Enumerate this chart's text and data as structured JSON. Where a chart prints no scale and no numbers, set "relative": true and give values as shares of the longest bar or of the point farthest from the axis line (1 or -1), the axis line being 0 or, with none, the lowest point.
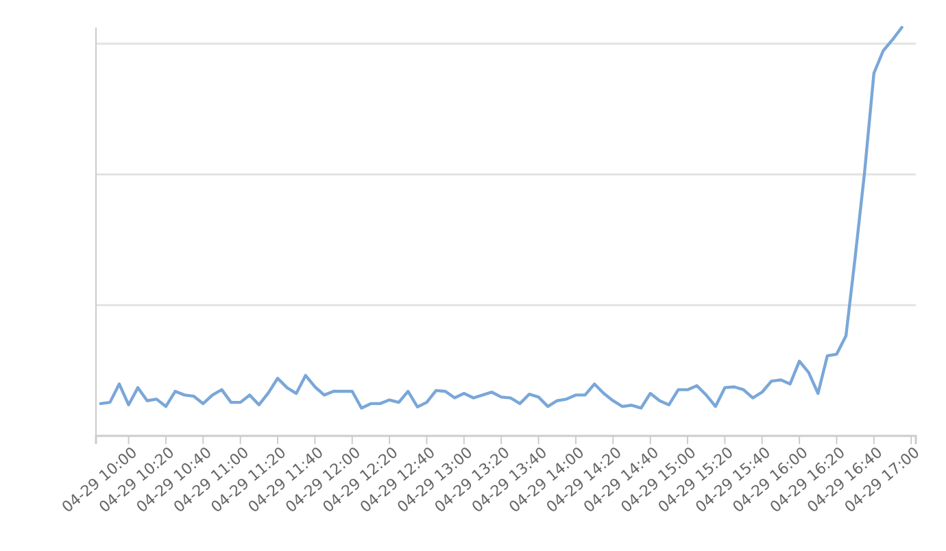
{
  "chart_data": {
    "type": "line",
    "relative": true,
    "categories": [
      null,
      null,
      null,
      "04-29 10:00",
      null,
      null,
      null,
      "04-29 10:20",
      null,
      null,
      null,
      "04-29 10:40",
      null,
      null,
      null,
      "04-29 11:00",
      null,
      null,
      null,
      "04-29 11:20",
      null,
      null,
      null,
      "04-29 11:40",
      null,
      null,
      null,
      "04-29 12:00",
      null,
      null,
      null,
      "04-29 12:20",
      null,
      null,
      null,
      "04-29 12:40",
      null,
      null,
      null,
      "04-29 13:00",
      null,
      null,
      null,
      "04-29 13:20",
      null,
      null,
      null,
      "04-29 13:40",
      null,
      null,
      null,
      "04-29 14:00",
      null,
      null,
      null,
      "04-29 14:20",
      null,
      null,
      null,
      "04-29 14:40",
      null,
      null,
      null,
      "04-29 15:00",
      null,
      null,
      null,
      "04-29 15:20",
      null,
      null,
      null,
      "04-29 15:40",
      null,
      null,
      null,
      "04-29 16:00",
      null,
      null,
      null,
      "04-29 16:20",
      null,
      null,
      null,
      "04-29 16:40",
      null,
      null,
      null,
      "04-29 17:00"
    ],
    "series": [
      {
        "color": "#7aa7d8",
        "values": [
          0.079,
          0.082,
          0.127,
          0.076,
          0.118,
          0.086,
          0.09,
          0.072,
          0.109,
          0.1,
          0.097,
          0.079,
          0.1,
          0.113,
          0.082,
          0.082,
          0.1,
          0.076,
          0.105,
          0.141,
          0.118,
          0.104,
          0.148,
          0.12,
          0.1,
          0.109,
          0.109,
          0.109,
          0.068,
          0.079,
          0.079,
          0.088,
          0.082,
          0.109,
          0.071,
          0.082,
          0.111,
          0.109,
          0.093,
          0.104,
          0.093,
          0.1,
          0.107,
          0.095,
          0.093,
          0.079,
          0.102,
          0.095,
          0.072,
          0.086,
          0.09,
          0.1,
          0.1,
          0.127,
          0.104,
          0.086,
          0.072,
          0.075,
          0.068,
          0.104,
          0.086,
          0.076,
          0.113,
          0.113,
          0.123,
          0.1,
          0.072,
          0.118,
          0.12,
          0.113,
          0.093,
          0.107,
          0.134,
          0.137,
          0.127,
          0.183,
          0.155,
          0.104,
          0.196,
          0.2,
          0.245,
          0.44,
          0.646,
          0.888,
          0.943,
          0.97,
          1,
          null
        ]
      }
    ]
  }
}
